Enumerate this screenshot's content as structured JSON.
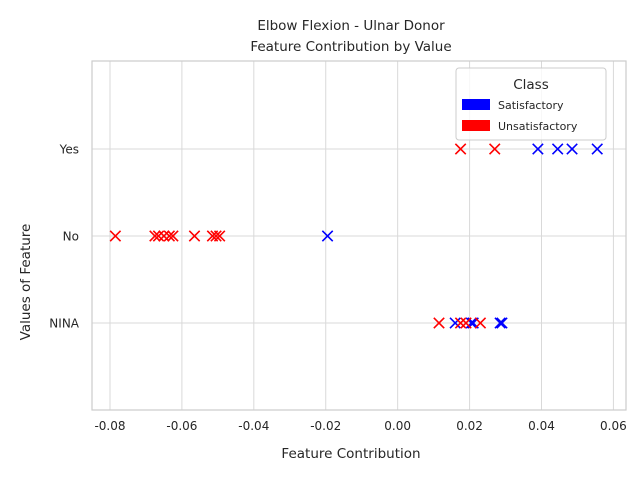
{
  "chart_data": {
    "type": "scatter",
    "title": "Elbow Flexion - Ulnar Donor",
    "subtitle": "Feature Contribution by Value",
    "xlabel": "Feature Contribution",
    "ylabel": "Values of Feature",
    "xlim": [
      -0.085,
      0.0635
    ],
    "x_ticks": [
      "-0.08",
      "-0.06",
      "-0.04",
      "-0.02",
      "0.00",
      "0.02",
      "0.04",
      "0.06"
    ],
    "x_tick_values": [
      -0.08,
      -0.06,
      -0.04,
      -0.02,
      0.0,
      0.02,
      0.04,
      0.06
    ],
    "categories": [
      "Yes",
      "No",
      "NINA"
    ],
    "grid": true,
    "marker": "x",
    "legend": {
      "title": "Class",
      "placement": "top-right",
      "entries": [
        {
          "label": "Satisfactory",
          "color": "#0000ff"
        },
        {
          "label": "Unsatisfactory",
          "color": "#ff0000"
        }
      ]
    },
    "series": [
      {
        "name": "Satisfactory",
        "color": "#0000ff",
        "points": [
          {
            "x": 0.039,
            "y": "Yes"
          },
          {
            "x": 0.0445,
            "y": "Yes"
          },
          {
            "x": 0.0485,
            "y": "Yes"
          },
          {
            "x": 0.0555,
            "y": "Yes"
          },
          {
            "x": -0.0195,
            "y": "No"
          },
          {
            "x": 0.016,
            "y": "NINA"
          },
          {
            "x": 0.0205,
            "y": "NINA"
          },
          {
            "x": 0.021,
            "y": "NINA"
          },
          {
            "x": 0.0285,
            "y": "NINA"
          },
          {
            "x": 0.029,
            "y": "NINA"
          }
        ]
      },
      {
        "name": "Unsatisfactory",
        "color": "#ff0000",
        "points": [
          {
            "x": 0.0175,
            "y": "Yes"
          },
          {
            "x": 0.027,
            "y": "Yes"
          },
          {
            "x": -0.0785,
            "y": "No"
          },
          {
            "x": -0.0675,
            "y": "No"
          },
          {
            "x": -0.0665,
            "y": "No"
          },
          {
            "x": -0.065,
            "y": "No"
          },
          {
            "x": -0.0635,
            "y": "No"
          },
          {
            "x": -0.0625,
            "y": "No"
          },
          {
            "x": -0.0565,
            "y": "No"
          },
          {
            "x": -0.0515,
            "y": "No"
          },
          {
            "x": -0.0505,
            "y": "No"
          },
          {
            "x": -0.0495,
            "y": "No"
          },
          {
            "x": 0.0115,
            "y": "NINA"
          },
          {
            "x": 0.0175,
            "y": "NINA"
          },
          {
            "x": 0.019,
            "y": "NINA"
          },
          {
            "x": 0.023,
            "y": "NINA"
          }
        ]
      }
    ]
  }
}
